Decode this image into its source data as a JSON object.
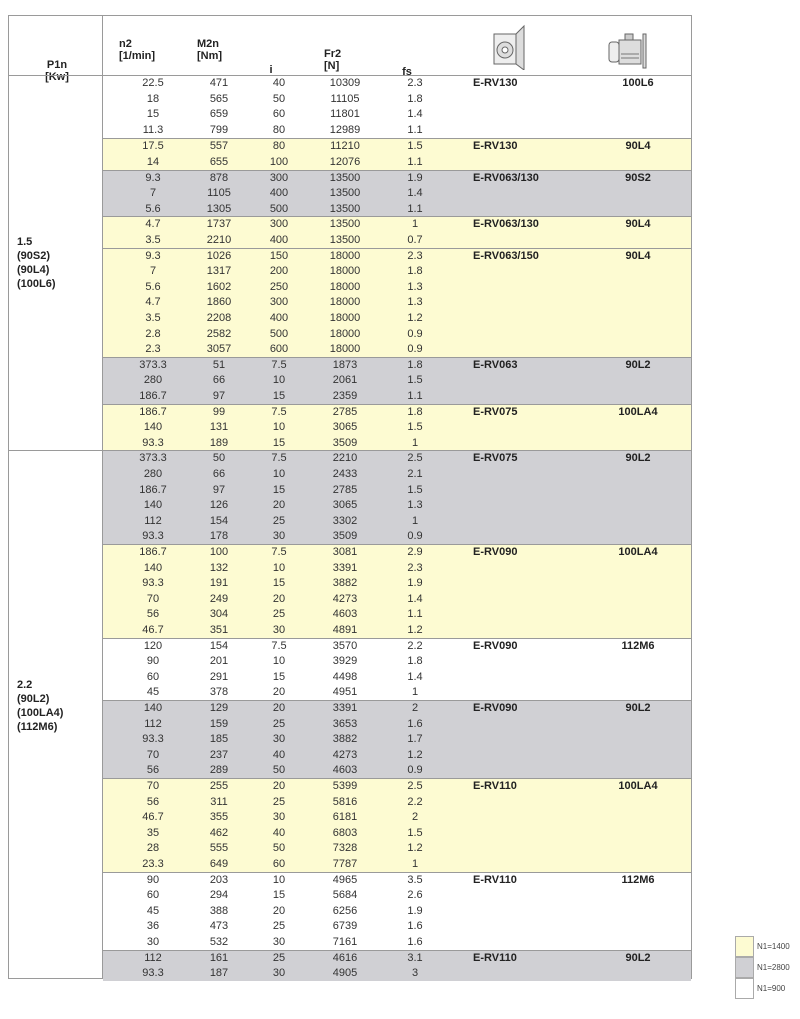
{
  "header": {
    "p1n": "P1n",
    "p1n_unit": "[Kw]",
    "n2": "n2",
    "n2_unit": "[1/min]",
    "m2n": "M2n",
    "m2n_unit": "[Nm]",
    "i": "i",
    "fr2": "Fr2",
    "fr2_unit": "[N]",
    "fs": "fs",
    "gearbox_icon": "worm-gearbox-icon",
    "motor_icon": "electric-motor-icon"
  },
  "colors": {
    "yellow": "#fdfbd2",
    "grey": "#d0d0d4",
    "white": "#ffffff"
  },
  "power_groups": [
    {
      "label": [
        "1.5",
        "(90S2)",
        "(90L4)",
        "(100L6)"
      ],
      "blocks": [
        {
          "n1": "yellow_skip",
          "color": "white",
          "model": "E-RV130",
          "motor": "100L6",
          "rows": [
            [
              "22.5",
              "471",
              "40",
              "10309",
              "2.3"
            ],
            [
              "18",
              "565",
              "50",
              "11105",
              "1.8"
            ],
            [
              "15",
              "659",
              "60",
              "11801",
              "1.4"
            ],
            [
              "11.3",
              "799",
              "80",
              "12989",
              "1.1"
            ]
          ]
        },
        {
          "color": "yellow",
          "model": "E-RV130",
          "motor": "90L4",
          "rows": [
            [
              "17.5",
              "557",
              "80",
              "11210",
              "1.5"
            ],
            [
              "14",
              "655",
              "100",
              "12076",
              "1.1"
            ]
          ]
        },
        {
          "color": "grey",
          "model": "E-RV063/130",
          "motor": "90S2",
          "rows": [
            [
              "9.3",
              "878",
              "300",
              "13500",
              "1.9"
            ],
            [
              "7",
              "1105",
              "400",
              "13500",
              "1.4"
            ],
            [
              "5.6",
              "1305",
              "500",
              "13500",
              "1.1"
            ]
          ]
        },
        {
          "color": "yellow",
          "model": "E-RV063/130",
          "motor": "90L4",
          "rows": [
            [
              "4.7",
              "1737",
              "300",
              "13500",
              "1"
            ],
            [
              "3.5",
              "2210",
              "400",
              "13500",
              "0.7"
            ]
          ]
        },
        {
          "color": "yellow",
          "model": "E-RV063/150",
          "motor": "90L4",
          "rows": [
            [
              "9.3",
              "1026",
              "150",
              "18000",
              "2.3"
            ],
            [
              "7",
              "1317",
              "200",
              "18000",
              "1.8"
            ],
            [
              "5.6",
              "1602",
              "250",
              "18000",
              "1.3"
            ],
            [
              "4.7",
              "1860",
              "300",
              "18000",
              "1.3"
            ],
            [
              "3.5",
              "2208",
              "400",
              "18000",
              "1.2"
            ],
            [
              "2.8",
              "2582",
              "500",
              "18000",
              "0.9"
            ],
            [
              "2.3",
              "3057",
              "600",
              "18000",
              "0.9"
            ]
          ]
        },
        {
          "color": "grey",
          "model": "E-RV063",
          "motor": "90L2",
          "rows": [
            [
              "373.3",
              "51",
              "7.5",
              "1873",
              "1.8"
            ],
            [
              "280",
              "66",
              "10",
              "2061",
              "1.5"
            ],
            [
              "186.7",
              "97",
              "15",
              "2359",
              "1.1"
            ]
          ]
        },
        {
          "color": "yellow",
          "model": "E-RV075",
          "motor": "100LA4",
          "rows": [
            [
              "186.7",
              "99",
              "7.5",
              "2785",
              "1.8"
            ],
            [
              "140",
              "131",
              "10",
              "3065",
              "1.5"
            ],
            [
              "93.3",
              "189",
              "15",
              "3509",
              "1"
            ]
          ]
        }
      ]
    },
    {
      "label": [
        "2.2",
        "(90L2)",
        "(100LA4)",
        "(112M6)"
      ],
      "blocks": [
        {
          "color": "grey",
          "model": "E-RV075",
          "motor": "90L2",
          "rows": [
            [
              "373.3",
              "50",
              "7.5",
              "2210",
              "2.5"
            ],
            [
              "280",
              "66",
              "10",
              "2433",
              "2.1"
            ],
            [
              "186.7",
              "97",
              "15",
              "2785",
              "1.5"
            ],
            [
              "140",
              "126",
              "20",
              "3065",
              "1.3"
            ],
            [
              "112",
              "154",
              "25",
              "3302",
              "1"
            ],
            [
              "93.3",
              "178",
              "30",
              "3509",
              "0.9"
            ]
          ]
        },
        {
          "color": "yellow",
          "model": "E-RV090",
          "motor": "100LA4",
          "rows": [
            [
              "186.7",
              "100",
              "7.5",
              "3081",
              "2.9"
            ],
            [
              "140",
              "132",
              "10",
              "3391",
              "2.3"
            ],
            [
              "93.3",
              "191",
              "15",
              "3882",
              "1.9"
            ],
            [
              "70",
              "249",
              "20",
              "4273",
              "1.4"
            ],
            [
              "56",
              "304",
              "25",
              "4603",
              "1.1"
            ],
            [
              "46.7",
              "351",
              "30",
              "4891",
              "1.2"
            ]
          ]
        },
        {
          "color": "white",
          "model": "E-RV090",
          "motor": "112M6",
          "rows": [
            [
              "120",
              "154",
              "7.5",
              "3570",
              "2.2"
            ],
            [
              "90",
              "201",
              "10",
              "3929",
              "1.8"
            ],
            [
              "60",
              "291",
              "15",
              "4498",
              "1.4"
            ],
            [
              "45",
              "378",
              "20",
              "4951",
              "1"
            ]
          ]
        },
        {
          "color": "grey",
          "model": "E-RV090",
          "motor": "90L2",
          "rows": [
            [
              "140",
              "129",
              "20",
              "3391",
              "2"
            ],
            [
              "112",
              "159",
              "25",
              "3653",
              "1.6"
            ],
            [
              "93.3",
              "185",
              "30",
              "3882",
              "1.7"
            ],
            [
              "70",
              "237",
              "40",
              "4273",
              "1.2"
            ],
            [
              "56",
              "289",
              "50",
              "4603",
              "0.9"
            ]
          ]
        },
        {
          "color": "yellow",
          "model": "E-RV110",
          "motor": "100LA4",
          "rows": [
            [
              "70",
              "255",
              "20",
              "5399",
              "2.5"
            ],
            [
              "56",
              "311",
              "25",
              "5816",
              "2.2"
            ],
            [
              "46.7",
              "355",
              "30",
              "6181",
              "2"
            ],
            [
              "35",
              "462",
              "40",
              "6803",
              "1.5"
            ],
            [
              "28",
              "555",
              "50",
              "7328",
              "1.2"
            ],
            [
              "23.3",
              "649",
              "60",
              "7787",
              "1"
            ]
          ]
        },
        {
          "color": "white",
          "model": "E-RV110",
          "motor": "112M6",
          "rows": [
            [
              "90",
              "203",
              "10",
              "4965",
              "3.5"
            ],
            [
              "60",
              "294",
              "15",
              "5684",
              "2.6"
            ],
            [
              "45",
              "388",
              "20",
              "6256",
              "1.9"
            ],
            [
              "36",
              "473",
              "25",
              "6739",
              "1.6"
            ],
            [
              "30",
              "532",
              "30",
              "7161",
              "1.6"
            ]
          ]
        },
        {
          "color": "grey",
          "model": "E-RV110",
          "motor": "90L2",
          "rows": [
            [
              "112",
              "161",
              "25",
              "4616",
              "3.1"
            ],
            [
              "93.3",
              "187",
              "30",
              "4905",
              "3"
            ]
          ]
        }
      ]
    }
  ],
  "legend": [
    {
      "color": "yellow",
      "label": "N1=1400"
    },
    {
      "color": "grey",
      "label": "N1=2800"
    },
    {
      "color": "white",
      "label": "N1=900"
    }
  ]
}
